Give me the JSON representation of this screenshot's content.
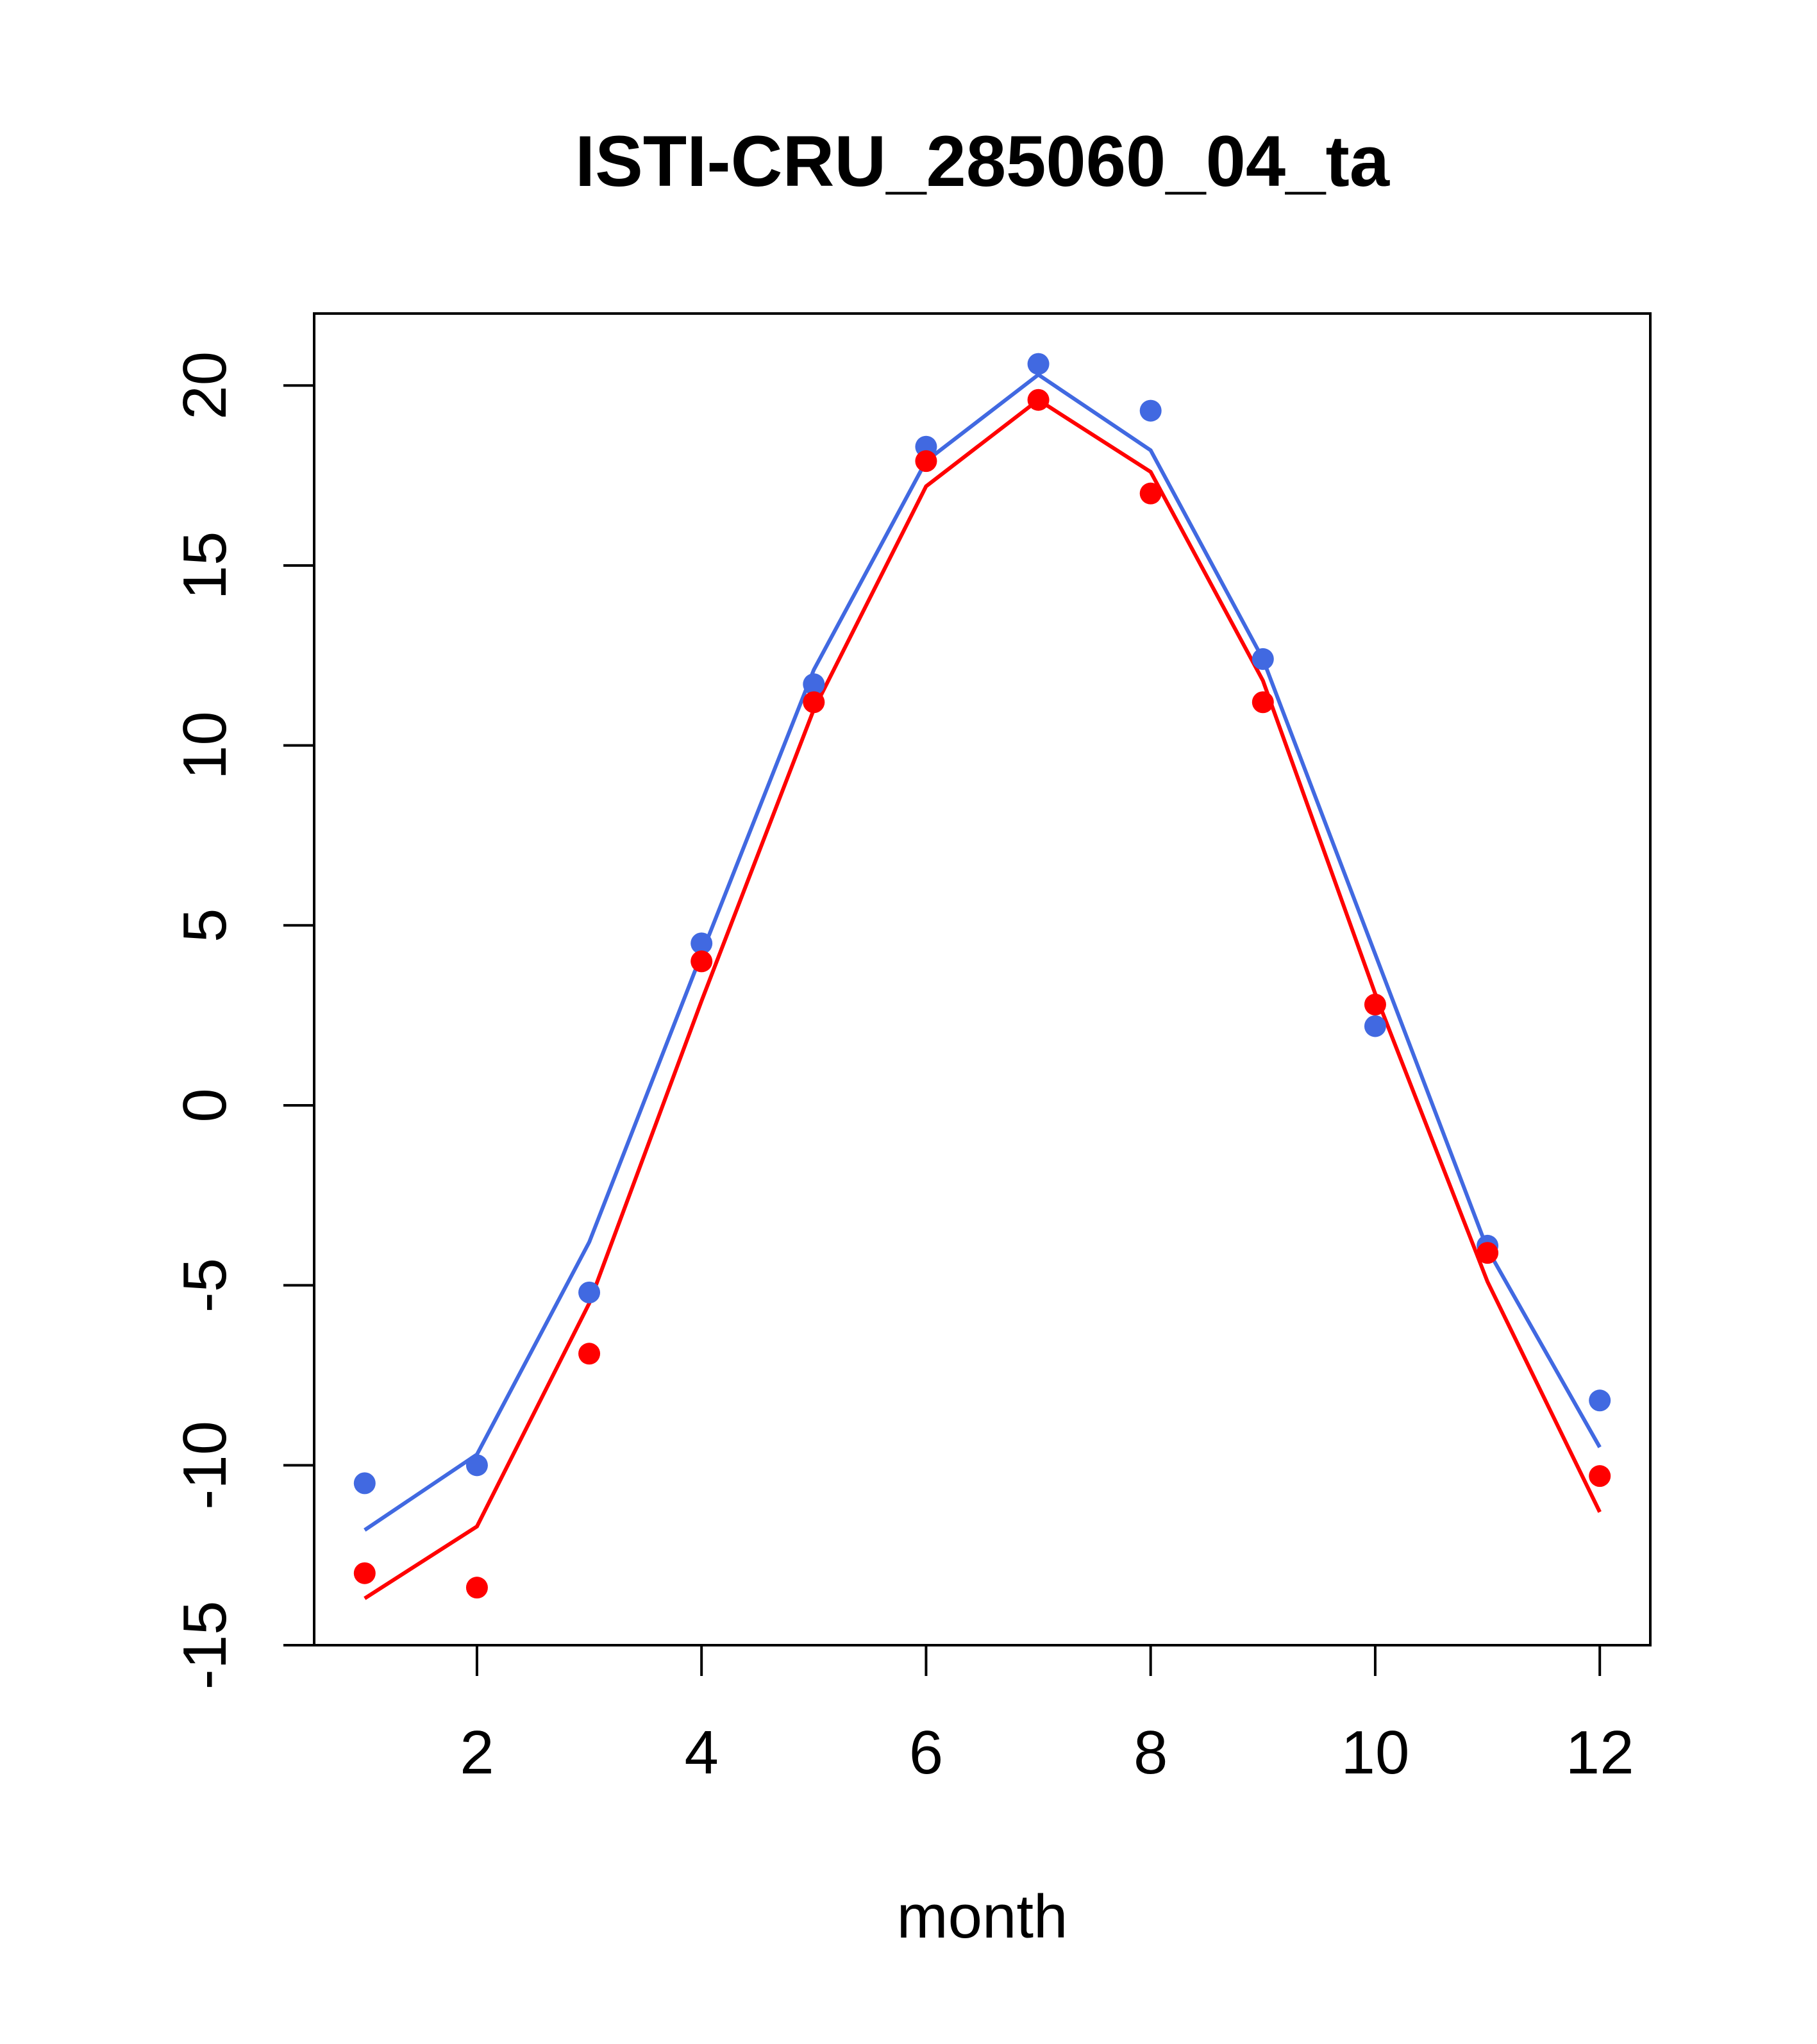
{
  "chart_data": {
    "type": "line",
    "title": "ISTI-CRU_285060_04_ta",
    "xlabel": "month",
    "ylabel": "",
    "xlim": [
      0.55,
      12.45
    ],
    "ylim": [
      -15,
      22
    ],
    "x_ticks": [
      2,
      4,
      6,
      8,
      10,
      12
    ],
    "y_ticks": [
      -15,
      -10,
      -5,
      0,
      5,
      10,
      15,
      20
    ],
    "x_tick_labels": [
      "2",
      "4",
      "6",
      "8",
      "10",
      "12"
    ],
    "y_tick_labels": [
      "-15",
      "-10",
      "-5",
      "0",
      "5",
      "10",
      "15",
      "20"
    ],
    "grid": false,
    "x": [
      1,
      2,
      3,
      4,
      5,
      6,
      7,
      8,
      9,
      10,
      11,
      12
    ],
    "series": [
      {
        "color": "#4169E1",
        "points": [
          -10.5,
          -10.0,
          -5.2,
          4.5,
          11.7,
          18.3,
          20.6,
          19.3,
          12.4,
          2.2,
          -3.9,
          -8.2
        ],
        "line": [
          -11.8,
          -9.7,
          -3.8,
          4.2,
          12.1,
          17.9,
          20.3,
          18.2,
          12.4,
          4.2,
          -4.0,
          -9.5
        ]
      },
      {
        "color": "#FF0000",
        "points": [
          -13.0,
          -13.4,
          -6.9,
          4.0,
          11.2,
          17.9,
          19.6,
          17.0,
          11.2,
          2.8,
          -4.1,
          -10.3
        ],
        "line": [
          -13.7,
          -11.7,
          -5.5,
          2.9,
          11.0,
          17.2,
          19.6,
          17.6,
          11.8,
          3.1,
          -4.9,
          -11.3
        ]
      }
    ]
  }
}
